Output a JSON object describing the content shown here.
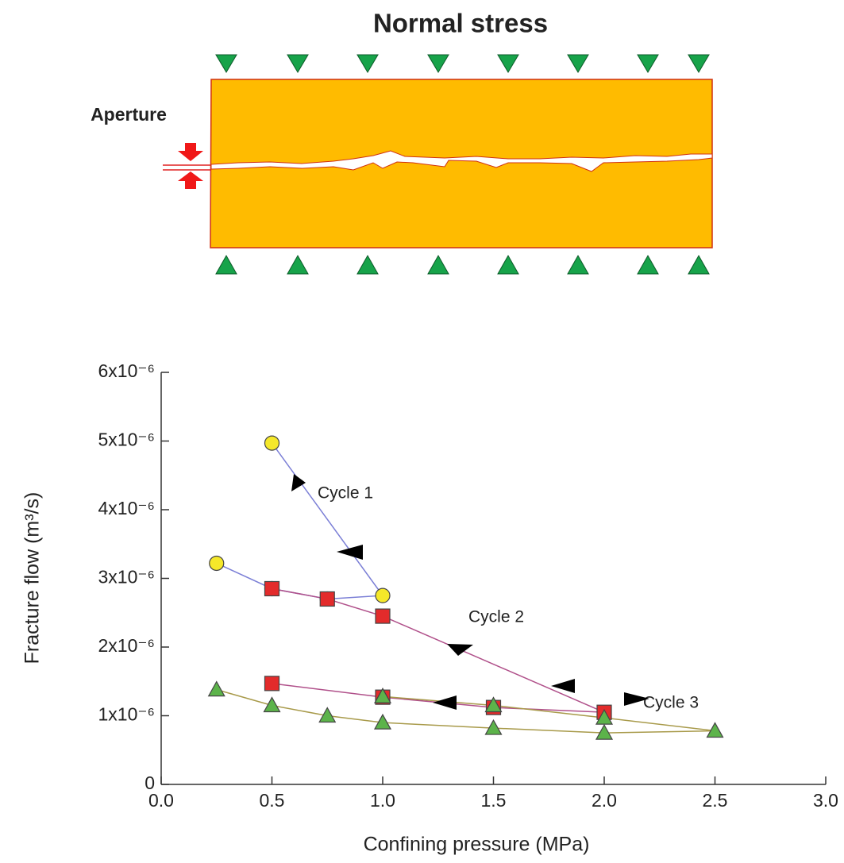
{
  "diagram": {
    "title": "Normal stress",
    "label": "Aperture"
  },
  "chart_data": {
    "type": "line",
    "xlabel": "Confining pressure (MPa)",
    "ylabel": "Fracture flow (m³/s)",
    "xlim": [
      0,
      3
    ],
    "xticks": [
      {
        "value": 0,
        "label": "0.0"
      },
      0.5,
      {
        "value": 1,
        "label": "1.0"
      },
      1.5,
      {
        "value": 2,
        "label": "2.0"
      },
      2.5,
      {
        "value": 3,
        "label": "3.0"
      }
    ],
    "ylim": [
      0,
      6e-06
    ],
    "yticks": [
      0,
      {
        "value": 1e-06,
        "label": "1x10⁻⁶"
      },
      {
        "value": 2e-06,
        "label": "2x10⁻⁶"
      },
      {
        "value": 3e-06,
        "label": "3x10⁻⁶"
      },
      {
        "value": 4e-06,
        "label": "4x10⁻⁶"
      },
      {
        "value": 5e-06,
        "label": "5x10⁻⁶"
      },
      {
        "value": 6e-06,
        "label": "6x10⁻⁶"
      }
    ],
    "series": [
      {
        "name": "Cycle 1",
        "color": "#7b7fd6",
        "marker": "circle",
        "marker_color": "#f5e82a",
        "x": [
          0.5,
          1.0,
          0.75,
          0.5,
          0.25
        ],
        "values": [
          4.97e-06,
          2.75e-06,
          2.7e-06,
          2.85e-06,
          3.22e-06
        ]
      },
      {
        "name": "Cycle 2",
        "color": "#b0508a",
        "marker": "square",
        "marker_color": "#e32b2b",
        "x": [
          0.5,
          0.75,
          1.0,
          2.0,
          1.5,
          1.0,
          0.5
        ],
        "values": [
          2.85e-06,
          2.7e-06,
          2.45e-06,
          1.05e-06,
          1.12e-06,
          1.27e-06,
          1.47e-06
        ]
      },
      {
        "name": "Cycle 3",
        "color": "#a89a4a",
        "marker": "triangle",
        "marker_color": "#5cb34a",
        "x": [
          0.25,
          0.5,
          0.75,
          1.0,
          1.5,
          2.0,
          2.5,
          2.0,
          1.5,
          1.0
        ],
        "values": [
          1.38e-06,
          1.15e-06,
          1e-06,
          9e-07,
          8.2e-07,
          7.5e-07,
          7.8e-07,
          9.7e-07,
          1.15e-06,
          1.28e-06
        ]
      }
    ]
  }
}
